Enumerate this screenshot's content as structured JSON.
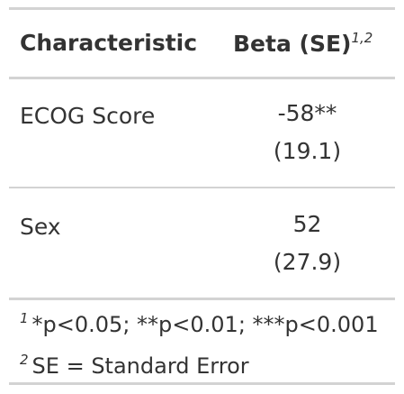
{
  "table": {
    "headers": {
      "characteristic": "Characteristic",
      "beta": "Beta (SE)",
      "beta_footnote_marks": "1,2"
    },
    "rows": [
      {
        "label": "ECOG Score",
        "estimate": "-58**",
        "se": "(19.1)"
      },
      {
        "label": "Sex",
        "estimate": "52",
        "se": "(27.9)"
      }
    ],
    "footnotes": [
      {
        "mark": "1",
        "text": "*p<0.05; **p<0.01; ***p<0.001"
      },
      {
        "mark": "2",
        "text": "SE = Standard Error"
      }
    ]
  },
  "colors": {
    "text": "#333333",
    "rules": "#d3d3d3",
    "background": "#ffffff"
  }
}
